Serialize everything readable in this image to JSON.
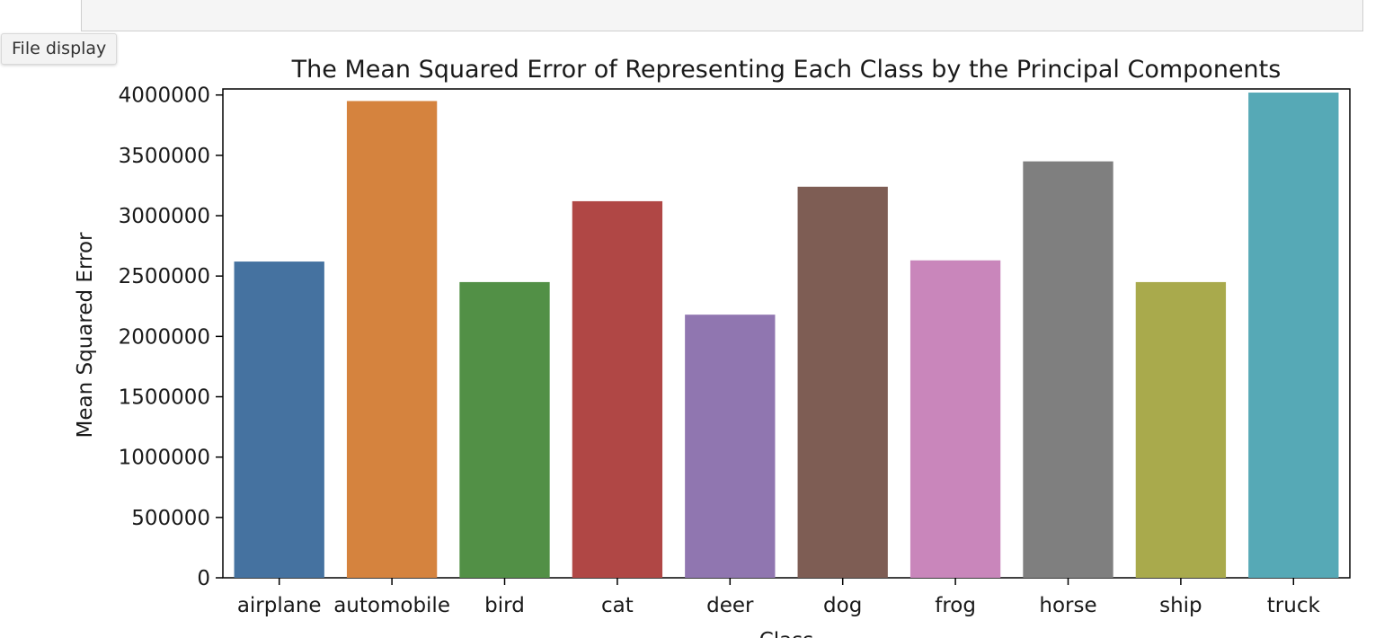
{
  "notebook": {
    "code_cell_text": "",
    "file_display_label": "File display"
  },
  "chart_data": {
    "type": "bar",
    "title": "The Mean Squared Error of Representing Each Class by the Principal Components",
    "xlabel": "Class",
    "ylabel": "Mean Squared Error",
    "categories": [
      "airplane",
      "automobile",
      "bird",
      "cat",
      "deer",
      "dog",
      "frog",
      "horse",
      "ship",
      "truck"
    ],
    "values": [
      2620000,
      3950000,
      2450000,
      3120000,
      2180000,
      3240000,
      2630000,
      3450000,
      2450000,
      4020000
    ],
    "colors": [
      "#4572a0",
      "#d5833e",
      "#529046",
      "#b04745",
      "#9076b0",
      "#7e5d54",
      "#c986bb",
      "#7f7f7f",
      "#a9aa4c",
      "#56a9b6"
    ],
    "yticks": [
      0,
      500000,
      1000000,
      1500000,
      2000000,
      2500000,
      3000000,
      3500000,
      4000000
    ],
    "ylim": [
      0,
      4050000
    ],
    "grid": false,
    "legend": "none"
  }
}
